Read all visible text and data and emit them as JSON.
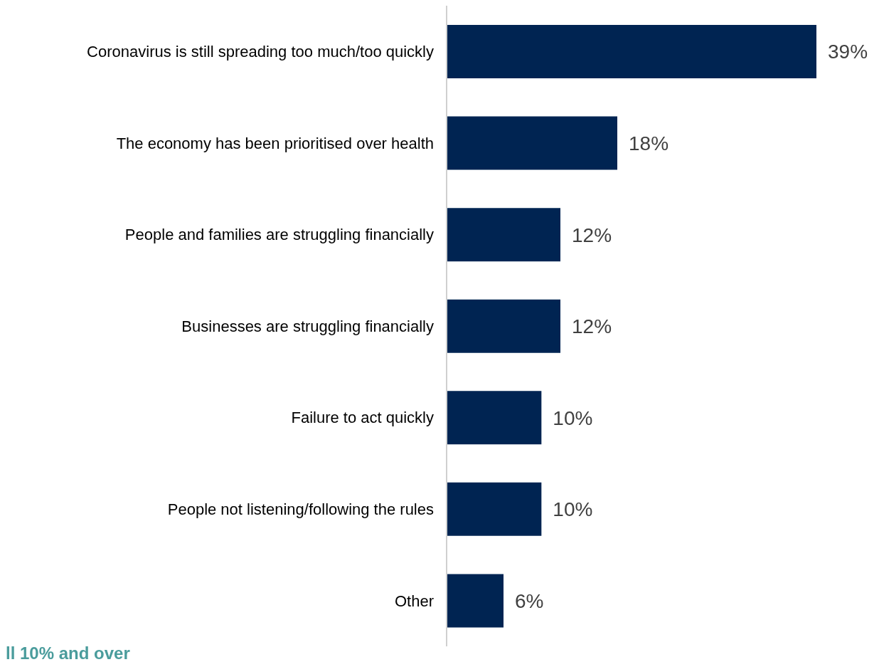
{
  "chart_data": {
    "type": "bar",
    "orientation": "horizontal",
    "categories": [
      "Coronavirus is still spreading too much/too quickly",
      "The economy has been prioritised over health",
      "People and families are struggling financially",
      "Businesses are struggling financially",
      "Failure to act quickly",
      "People not listening/following the rules",
      "Other"
    ],
    "values": [
      39,
      18,
      12,
      12,
      10,
      10,
      6
    ],
    "value_labels": [
      "39%",
      "18%",
      "12%",
      "12%",
      "10%",
      "10%",
      "6%"
    ],
    "color": "#002452",
    "annotations": [
      "ll 10% and over"
    ]
  }
}
